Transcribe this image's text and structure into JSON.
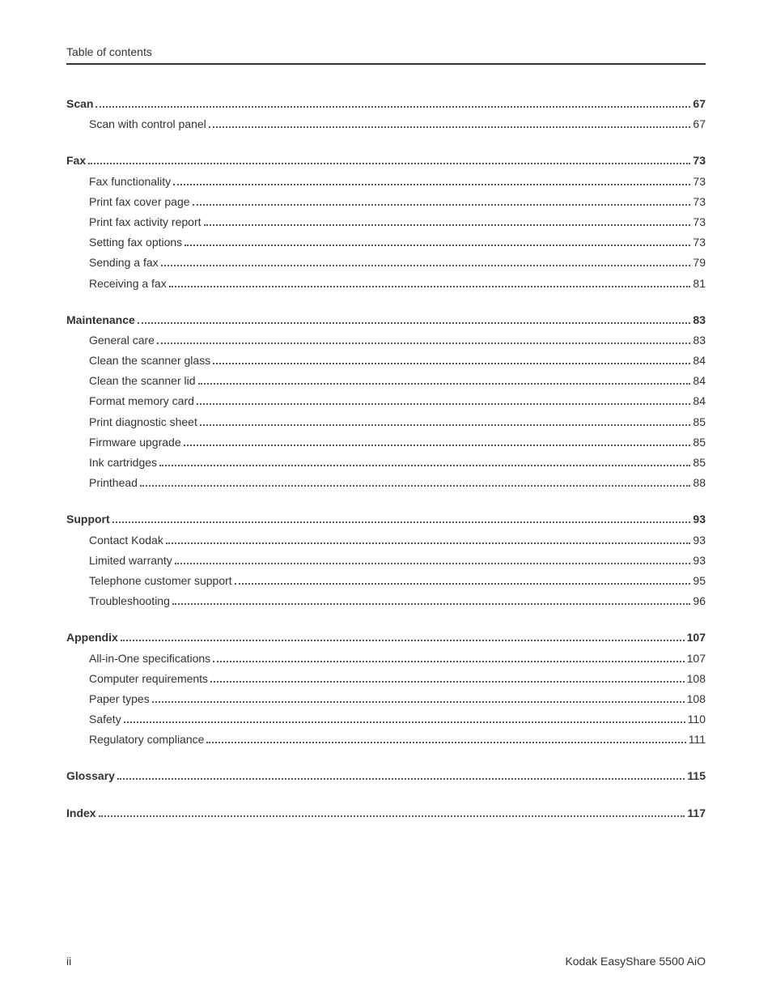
{
  "header": {
    "title": "Table of contents"
  },
  "toc": {
    "sections": [
      {
        "title": "Scan",
        "page": "67",
        "items": [
          {
            "label": "Scan with control panel",
            "page": "67"
          }
        ]
      },
      {
        "title": "Fax",
        "page": "73",
        "items": [
          {
            "label": "Fax functionality",
            "page": "73"
          },
          {
            "label": "Print fax cover page",
            "page": "73"
          },
          {
            "label": "Print fax activity report",
            "page": "73"
          },
          {
            "label": "Setting fax options",
            "page": "73"
          },
          {
            "label": "Sending a fax",
            "page": "79"
          },
          {
            "label": "Receiving a fax",
            "page": "81"
          }
        ]
      },
      {
        "title": "Maintenance",
        "page": "83",
        "items": [
          {
            "label": "General care",
            "page": "83"
          },
          {
            "label": "Clean the scanner glass",
            "page": "84"
          },
          {
            "label": "Clean the scanner lid",
            "page": "84"
          },
          {
            "label": "Format memory card",
            "page": "84"
          },
          {
            "label": "Print diagnostic sheet",
            "page": "85"
          },
          {
            "label": "Firmware upgrade",
            "page": "85"
          },
          {
            "label": "Ink cartridges",
            "page": "85"
          },
          {
            "label": "Printhead",
            "page": "88"
          }
        ]
      },
      {
        "title": "Support",
        "page": "93",
        "items": [
          {
            "label": "Contact Kodak",
            "page": "93"
          },
          {
            "label": "Limited warranty",
            "page": "93"
          },
          {
            "label": "Telephone customer support",
            "page": "95"
          },
          {
            "label": "Troubleshooting",
            "page": "96"
          }
        ]
      },
      {
        "title": "Appendix",
        "page": "107",
        "items": [
          {
            "label": "All-in-One specifications",
            "page": "107"
          },
          {
            "label": "Computer requirements",
            "page": "108"
          },
          {
            "label": "Paper types",
            "page": "108"
          },
          {
            "label": "Safety",
            "page": "110"
          },
          {
            "label": "Regulatory compliance",
            "page": "111"
          }
        ]
      },
      {
        "title": "Glossary",
        "page": "115",
        "items": []
      },
      {
        "title": "Index",
        "page": "117",
        "items": []
      }
    ]
  },
  "footer": {
    "page_number": "ii",
    "product": "Kodak EasyShare 5500 AiO"
  }
}
